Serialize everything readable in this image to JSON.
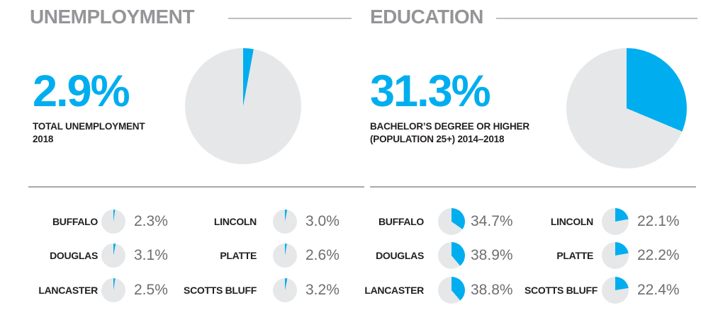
{
  "colors": {
    "accent_blue": "#00AEEF",
    "pie_gray": "#E6E7E8",
    "header_gray": "#939598",
    "value_gray": "#6D6E71",
    "text_black": "#231F20",
    "rule_gray": "#BCBEC0",
    "divider_gray": "#A7A9AC"
  },
  "sections": {
    "unemployment": {
      "title": "UNEMPLOYMENT",
      "stat": {
        "value": "2.9%",
        "line1": "TOTAL UNEMPLOYMENT",
        "line2": "2018"
      },
      "pie_percent": 2.9,
      "counties": [
        {
          "name": "BUFFALO",
          "value": "2.3%",
          "percent": 2.3
        },
        {
          "name": "DOUGLAS",
          "value": "3.1%",
          "percent": 3.1
        },
        {
          "name": "LANCASTER",
          "value": "2.5%",
          "percent": 2.5
        },
        {
          "name": "LINCOLN",
          "value": "3.0%",
          "percent": 3.0
        },
        {
          "name": "PLATTE",
          "value": "2.6%",
          "percent": 2.6
        },
        {
          "name": "SCOTTS BLUFF",
          "value": "3.2%",
          "percent": 3.2
        }
      ]
    },
    "education": {
      "title": "EDUCATION",
      "stat": {
        "value": "31.3%",
        "line1": "BACHELOR’S DEGREE OR HIGHER",
        "line2": "(POPULATION 25+) 2014–2018"
      },
      "pie_percent": 31.3,
      "counties": [
        {
          "name": "BUFFALO",
          "value": "34.7%",
          "percent": 34.7
        },
        {
          "name": "DOUGLAS",
          "value": "38.9%",
          "percent": 38.9
        },
        {
          "name": "LANCASTER",
          "value": "38.8%",
          "percent": 38.8
        },
        {
          "name": "LINCOLN",
          "value": "22.1%",
          "percent": 22.1
        },
        {
          "name": "PLATTE",
          "value": "22.2%",
          "percent": 22.2
        },
        {
          "name": "SCOTTS BLUFF",
          "value": "22.4%",
          "percent": 22.4
        }
      ]
    }
  },
  "chart_data": [
    {
      "type": "pie",
      "title": "UNEMPLOYMENT",
      "headline_value": 2.9,
      "headline_label": "TOTAL UNEMPLOYMENT 2018",
      "slices": [
        {
          "label": "Unemployed",
          "value": 2.9,
          "color": "#00AEEF"
        },
        {
          "label": "Remainder",
          "value": 97.1,
          "color": "#E6E7E8"
        }
      ],
      "county_breakdown": {
        "type": "pie-list",
        "categories": [
          "BUFFALO",
          "DOUGLAS",
          "LANCASTER",
          "LINCOLN",
          "PLATTE",
          "SCOTTS BLUFF"
        ],
        "values": [
          2.3,
          3.1,
          2.5,
          3.0,
          2.6,
          3.2
        ],
        "unit": "%"
      }
    },
    {
      "type": "pie",
      "title": "EDUCATION",
      "headline_value": 31.3,
      "headline_label": "BACHELOR’S DEGREE OR HIGHER (POPULATION 25+) 2014–2018",
      "slices": [
        {
          "label": "Bachelor’s degree or higher",
          "value": 31.3,
          "color": "#00AEEF"
        },
        {
          "label": "Remainder",
          "value": 68.7,
          "color": "#E6E7E8"
        }
      ],
      "county_breakdown": {
        "type": "pie-list",
        "categories": [
          "BUFFALO",
          "DOUGLAS",
          "LANCASTER",
          "LINCOLN",
          "PLATTE",
          "SCOTTS BLUFF"
        ],
        "values": [
          34.7,
          38.9,
          38.8,
          22.1,
          22.2,
          22.4
        ],
        "unit": "%"
      }
    }
  ]
}
